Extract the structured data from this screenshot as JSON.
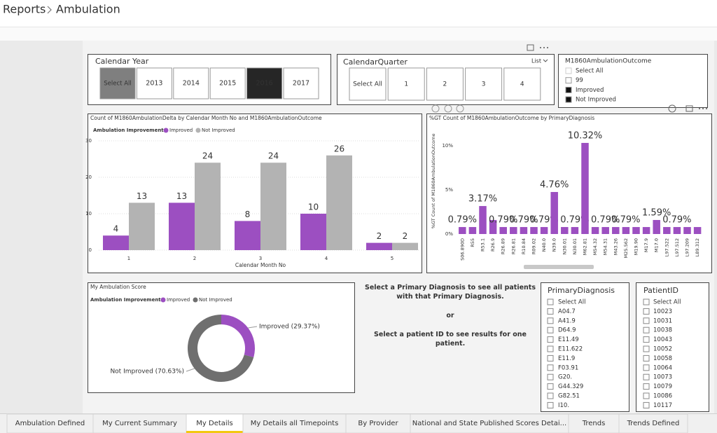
{
  "breadcrumb": [
    "Reports",
    "Ambulation"
  ],
  "year_slicer": {
    "title": "Calendar Year",
    "items": [
      "Select All",
      "2013",
      "2014",
      "2015",
      "2016",
      "2017"
    ],
    "selected": 4
  },
  "quarter_slicer": {
    "title": "CalendarQuarter",
    "mode": "List",
    "items": [
      "Select All",
      "1",
      "2",
      "3",
      "4"
    ]
  },
  "outcome_slicer": {
    "title": "M1860AmbulationOutcome",
    "items": [
      "Select All",
      "99",
      "Improved",
      "Not Improved"
    ],
    "checked": [
      false,
      false,
      true,
      true
    ]
  },
  "chart_data": [
    {
      "type": "bar",
      "title": "Count of M1860AmbulationDelta by Calendar Month No and M1860AmbulationOutcome",
      "legend_title": "Ambulation Improvement",
      "x_label": "Calendar Month No",
      "categories": [
        "1",
        "2",
        "3",
        "4",
        "5"
      ],
      "series": [
        {
          "name": "Improved",
          "color": "#9c4fc1",
          "values": [
            4,
            13,
            8,
            10,
            2
          ]
        },
        {
          "name": "Not Improved",
          "color": "#b3b3b3",
          "values": [
            13,
            24,
            24,
            26,
            2
          ]
        }
      ],
      "ylim": [
        0,
        30
      ],
      "yticks": [
        0,
        10,
        20,
        30
      ],
      "grid": true
    },
    {
      "type": "bar",
      "title": "%GT Count of M1860AmbulationOutcome by PrimaryDiagnosis",
      "y_label": "%GT Count of M1860AmbulationOutcome",
      "categories": [
        "S06.890D",
        "R55",
        "R53.1",
        "R26.9",
        "R26.89",
        "R26.81",
        "R10.84",
        "R09.02",
        "N40.0",
        "N39.0",
        "N30.01",
        "N30.01",
        "M62.81",
        "M54.32",
        "M54.31",
        "M43.26",
        "M25.562",
        "M19.90",
        "M17.9",
        "M17.0",
        "L97.522",
        "L97.512",
        "L97.209",
        "L89.312"
      ],
      "series": [
        {
          "name": "%GT Count of M1860AmbulationOutcome",
          "color": "#9c4fc1",
          "values": [
            0.79,
            0.79,
            3.17,
            1.59,
            0.79,
            0.79,
            0.79,
            0.79,
            0.79,
            4.76,
            0.79,
            0.79,
            10.32,
            0.79,
            0.79,
            0.79,
            0.79,
            0.79,
            0.79,
            1.59,
            0.79,
            0.79,
            0.79,
            0.79
          ],
          "value_labels": [
            "0.79%",
            null,
            "3.17%",
            null,
            "0.79%",
            null,
            "0.79%",
            null,
            "0.79%",
            "4.76%",
            null,
            "0.79%",
            "10.32%",
            null,
            "0.79%",
            null,
            "0.79%",
            null,
            null,
            "1.59%",
            null,
            "0.79%",
            null,
            null
          ]
        }
      ],
      "ylim": [
        0,
        12
      ],
      "yticks": [
        {
          "value": 0,
          "label": "0%"
        },
        {
          "value": 5,
          "label": "5%"
        },
        {
          "value": 10,
          "label": "10%"
        }
      ],
      "grid": false
    },
    {
      "type": "pie",
      "title": "My Ambulation Score",
      "legend_title": "Ambulation Improvement",
      "donut": true,
      "categories": [
        "Improved",
        "Not Improved"
      ],
      "values": [
        29.37,
        70.63
      ],
      "value_labels": [
        "Improved (29.37%)",
        "Not Improved (70.63%)"
      ],
      "colors": [
        "#9c4fc1",
        "#6f6f6f"
      ]
    }
  ],
  "instructions": [
    "Select a Primary Diagnosis to see all patients with that Primary Diagnosis.",
    "or",
    "Select a patient ID to see results for one patient."
  ],
  "diagnosis_slicer": {
    "title": "PrimaryDiagnosis",
    "items": [
      "Select All",
      "A04.7",
      "A41.9",
      "D64.9",
      "E11.49",
      "E11.622",
      "E11.9",
      "F03.91",
      "G20.",
      "G44.329",
      "G82.51",
      "I10."
    ]
  },
  "patient_slicer": {
    "title": "PatientID",
    "items": [
      "Select All",
      "10023",
      "10031",
      "10038",
      "10043",
      "10052",
      "10058",
      "10064",
      "10073",
      "10079",
      "10086",
      "10117"
    ]
  },
  "tabs": {
    "items": [
      "Ambulation Defined",
      "My Current Summary",
      "My Details",
      "My Details all Timepoints",
      "By Provider",
      "National and State Published Scores Detai...",
      "Trends",
      "Trends Defined"
    ],
    "active": 2
  }
}
